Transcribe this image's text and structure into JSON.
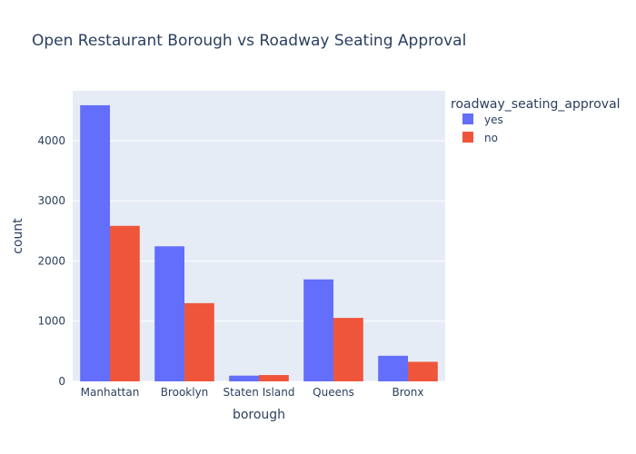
{
  "chart_data": {
    "type": "bar",
    "title": "Open Restaurant Borough vs Roadway Seating Approval",
    "xlabel": "borough",
    "ylabel": "count",
    "categories": [
      "Manhattan",
      "Brooklyn",
      "Staten Island",
      "Queens",
      "Bronx"
    ],
    "series": [
      {
        "name": "yes",
        "color": "#636efa",
        "values": [
          4590,
          2245,
          95,
          1695,
          425
        ]
      },
      {
        "name": "no",
        "color": "#ef553b",
        "values": [
          2585,
          1300,
          105,
          1055,
          325
        ]
      }
    ],
    "ylim": [
      0,
      4830
    ],
    "yticks": [
      0,
      1000,
      2000,
      3000,
      4000
    ],
    "grid": true,
    "legend": {
      "title": "roadway_seating_approval",
      "placement": "right"
    },
    "barmode": "group"
  }
}
